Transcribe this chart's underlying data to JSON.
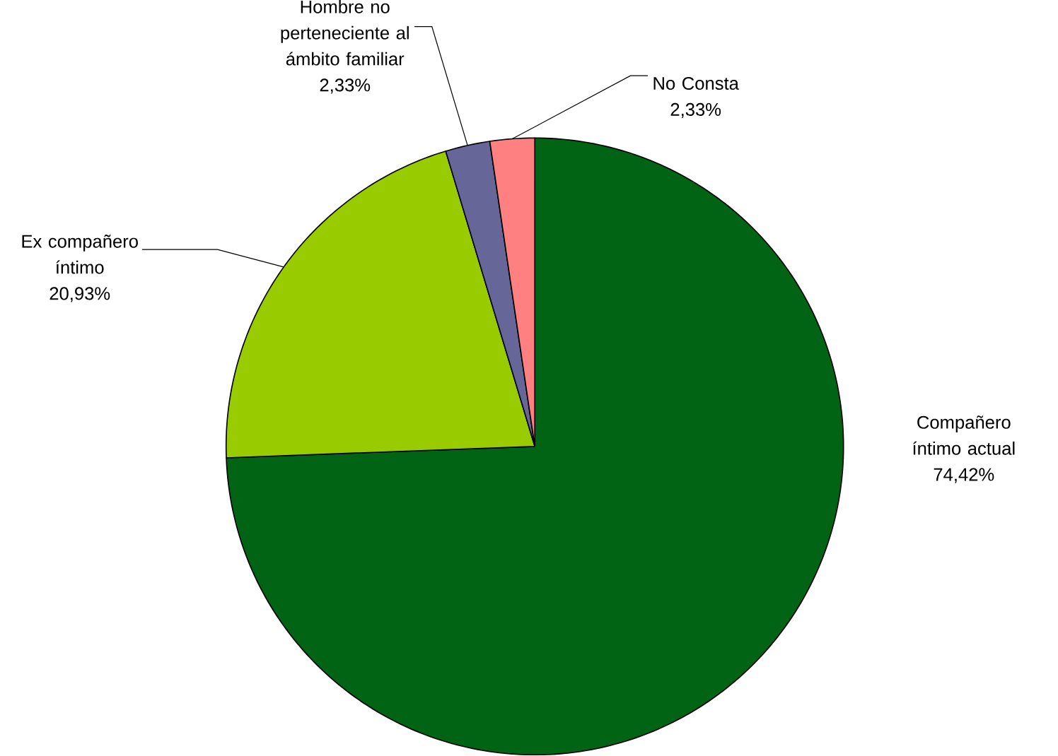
{
  "chart_data": {
    "type": "pie",
    "categories": [
      "Compañero íntimo actual",
      "Ex compañero íntimo",
      "Hombre no perteneciente al ámbito familiar",
      "No Consta"
    ],
    "values": [
      74.42,
      20.93,
      2.33,
      2.33
    ],
    "value_labels": [
      "74,42%",
      "20,93%",
      "2,33%",
      "2,33%"
    ],
    "colors": [
      "#006414",
      "#99cc00",
      "#666699",
      "#ff8080"
    ]
  }
}
